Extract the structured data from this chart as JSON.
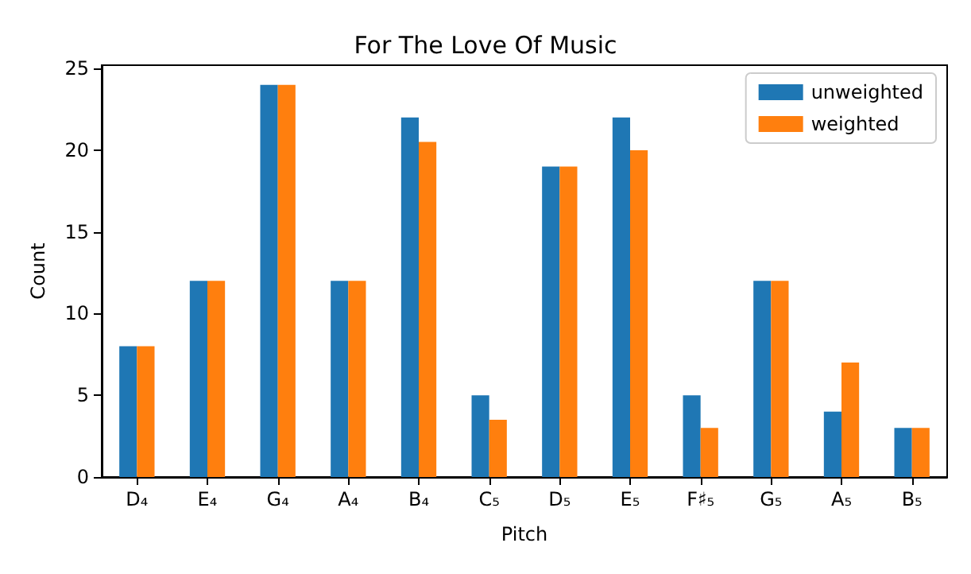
{
  "chart_data": {
    "type": "bar",
    "title": "For The Love Of Music",
    "xlabel": "Pitch",
    "ylabel": "Count",
    "categories": [
      "D₄",
      "E₄",
      "G₄",
      "A₄",
      "B₄",
      "C₅",
      "D₅",
      "E₅",
      "F♯₅",
      "G₅",
      "A₅",
      "B₅"
    ],
    "series": [
      {
        "name": "unweighted",
        "color": "#1f77b4",
        "values": [
          8,
          12,
          24,
          12,
          22,
          5,
          19,
          22,
          5,
          12,
          4,
          3
        ]
      },
      {
        "name": "weighted",
        "color": "#ff7f0e",
        "values": [
          8,
          12,
          24,
          12,
          20.5,
          3.5,
          19,
          20,
          3,
          12,
          7,
          3
        ]
      }
    ],
    "ylim": [
      0,
      25.2
    ],
    "yticks": [
      0,
      5,
      10,
      15,
      20,
      25
    ],
    "grid": false,
    "legend": "top right"
  }
}
